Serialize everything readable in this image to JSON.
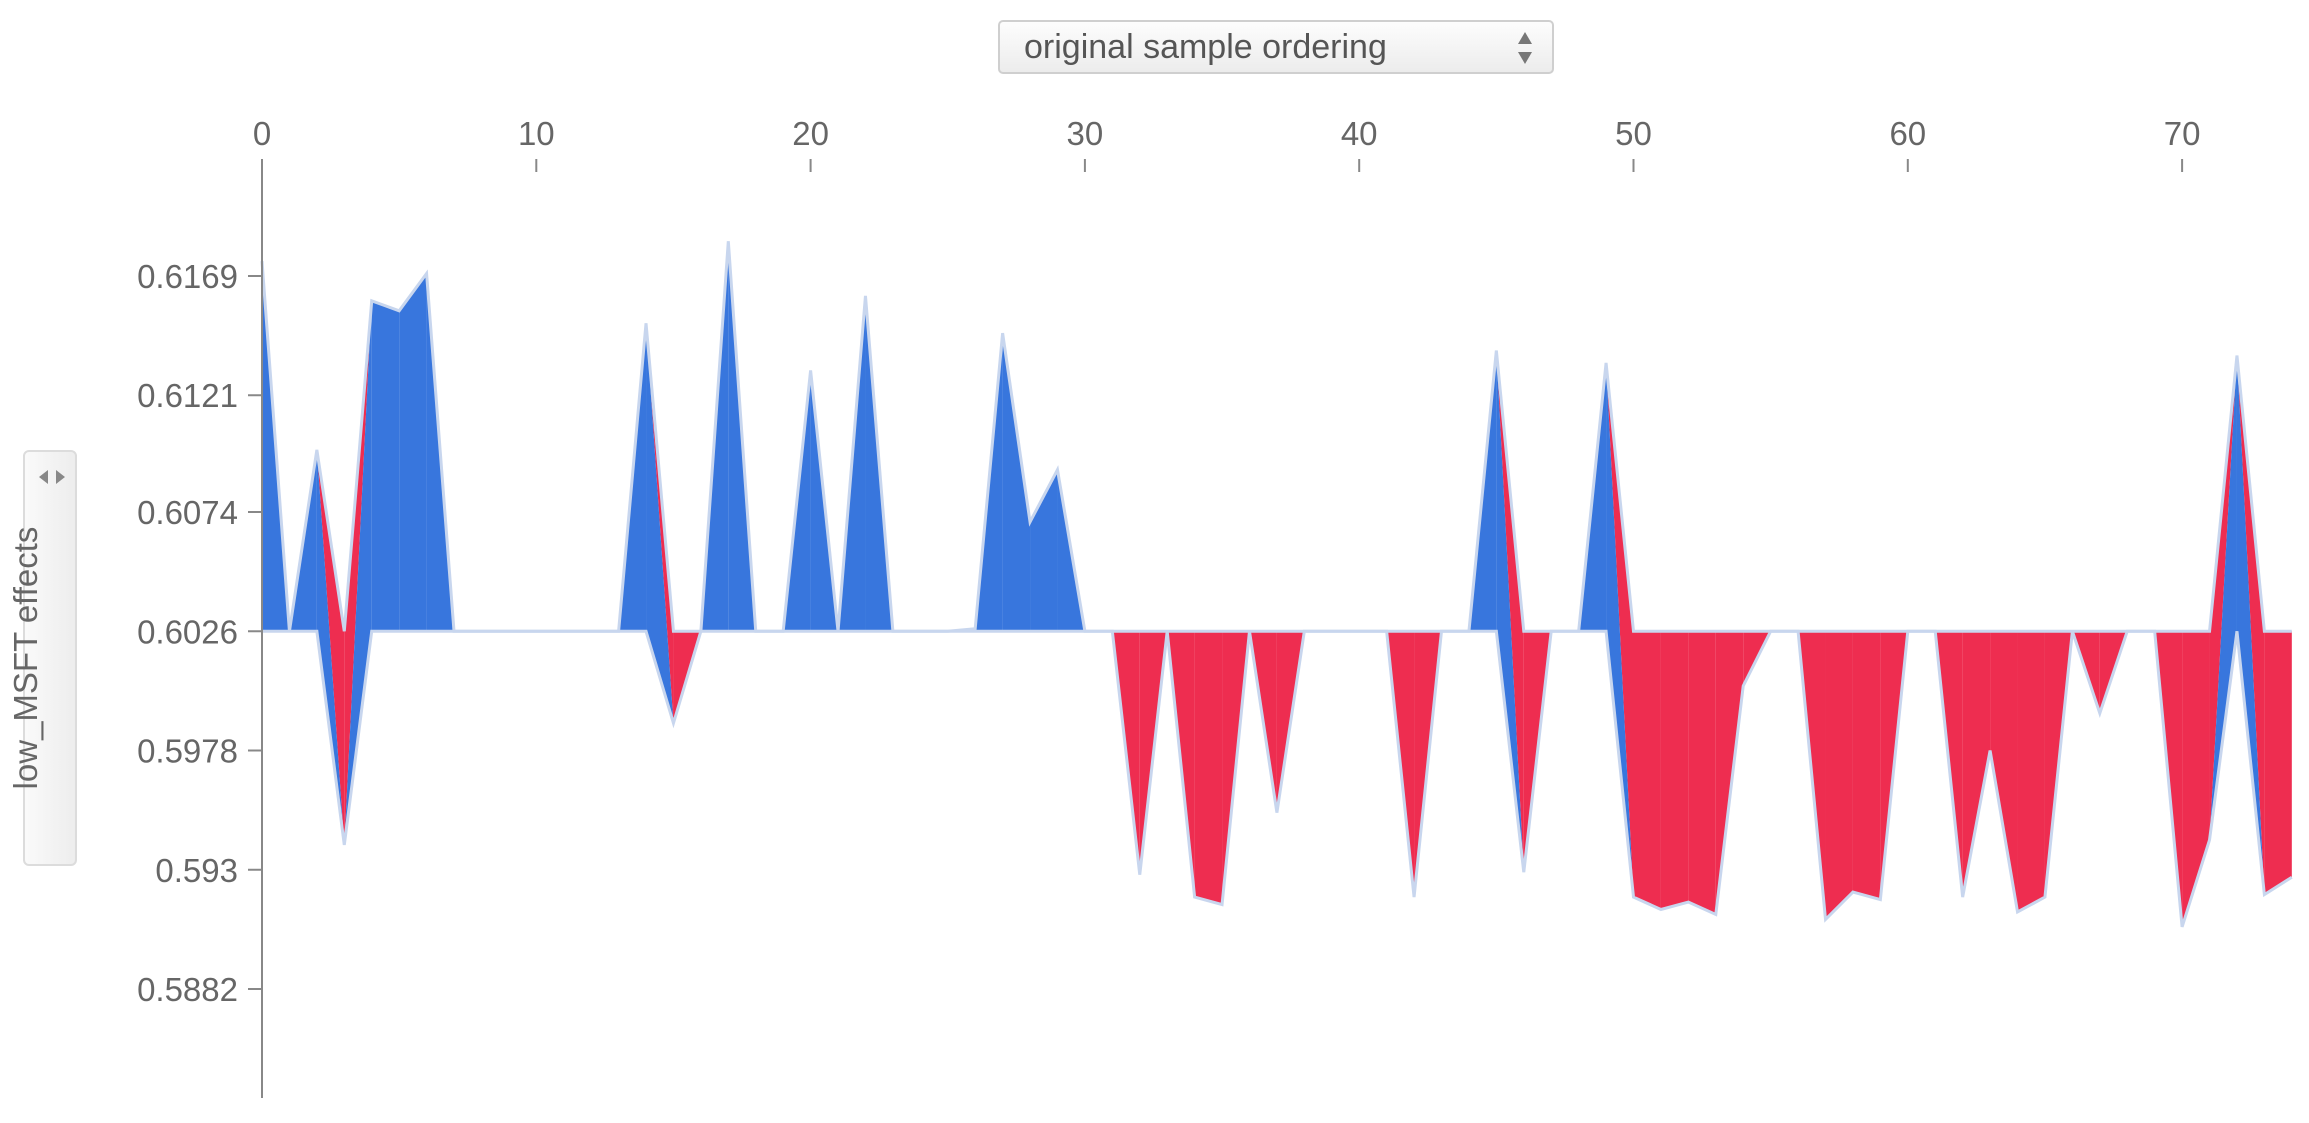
{
  "controls": {
    "ordering_select": "original sample ordering",
    "yaxis_label": "low_MSFT effects"
  },
  "colors": {
    "positive": "#ee2d50",
    "negative": "#3876dd",
    "outline": "#c8d6ee",
    "axis": "#888888",
    "text": "#666666"
  },
  "chart_data": {
    "type": "area",
    "title": "",
    "xlabel": "",
    "ylabel": "low_MSFT effects",
    "base_value": 0.6026,
    "x_ticks": [
      0,
      10,
      20,
      30,
      40,
      50,
      60,
      70
    ],
    "y_ticks": [
      "0.6169",
      "0.6121",
      "0.6074",
      "0.6026",
      "0.5978",
      "0.593",
      "0.5882"
    ],
    "xlim": [
      0,
      74
    ],
    "ylim": [
      0.5846,
      0.6208
    ],
    "series": [
      {
        "name": "positive",
        "values": [
          0.6175,
          0.6026,
          0.6099,
          0.6026,
          0.6159,
          0.6155,
          0.617,
          0.6026,
          0.6026,
          0.6026,
          0.6026,
          0.6026,
          0.6026,
          0.6026,
          0.615,
          0.6026,
          0.6026,
          0.6183,
          0.6026,
          0.6026,
          0.6131,
          0.6026,
          0.6161,
          0.6026,
          0.6026,
          0.6026,
          0.6027,
          0.6146,
          0.607,
          0.6091,
          0.6026,
          0.6026,
          0.6026,
          0.6026,
          0.6026,
          0.6026,
          0.6026,
          0.6026,
          0.6026,
          0.6026,
          0.6026,
          0.6026,
          0.6026,
          0.6026,
          0.6026,
          0.6139,
          0.6026,
          0.6026,
          0.6026,
          0.6134,
          0.6026,
          0.6026,
          0.6026,
          0.6026,
          0.6026,
          0.6026,
          0.6026,
          0.6026,
          0.6026,
          0.6026,
          0.6026,
          0.6026,
          0.6026,
          0.6026,
          0.6026,
          0.6026,
          0.6026,
          0.6026,
          0.6026,
          0.6026,
          0.6026,
          0.6026,
          0.6137,
          0.6026,
          0.6026
        ]
      },
      {
        "name": "negative",
        "values": [
          0.6026,
          0.6026,
          0.6026,
          0.594,
          0.6026,
          0.6026,
          0.6026,
          0.6026,
          0.6026,
          0.6026,
          0.6026,
          0.6026,
          0.6026,
          0.6026,
          0.6026,
          0.5989,
          0.6026,
          0.6026,
          0.6026,
          0.6026,
          0.6026,
          0.6026,
          0.6026,
          0.6026,
          0.6026,
          0.6026,
          0.6026,
          0.6026,
          0.6026,
          0.6026,
          0.6026,
          0.6026,
          0.5928,
          0.6026,
          0.5919,
          0.5916,
          0.6026,
          0.5953,
          0.6026,
          0.6026,
          0.6026,
          0.6026,
          0.5919,
          0.6026,
          0.6026,
          0.6026,
          0.5929,
          0.6026,
          0.6026,
          0.6026,
          0.5919,
          0.5914,
          0.5917,
          0.5912,
          0.6004,
          0.6026,
          0.6026,
          0.591,
          0.5921,
          0.5918,
          0.6026,
          0.6026,
          0.5919,
          0.5978,
          0.5913,
          0.5919,
          0.6026,
          0.5993,
          0.6026,
          0.6026,
          0.5907,
          0.5942,
          0.6026,
          0.592,
          0.5927
        ]
      }
    ]
  }
}
